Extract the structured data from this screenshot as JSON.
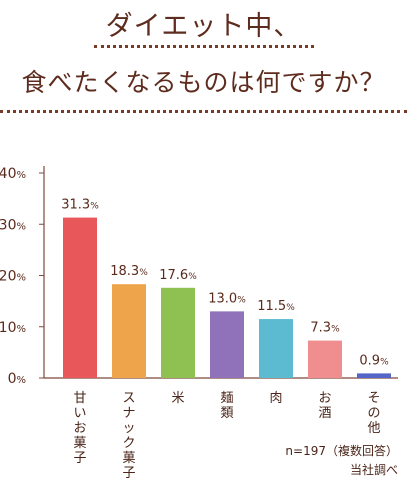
{
  "title_line1": "ダイエット中、",
  "title_line2": "食べたくなるものは何ですか？",
  "chart_data": {
    "type": "bar",
    "categories": [
      "甘いお菓子",
      "スナック菓子",
      "米",
      "麺類",
      "肉",
      "お酒",
      "その他"
    ],
    "values": [
      31.3,
      18.3,
      17.6,
      13.0,
      11.5,
      7.3,
      0.9
    ],
    "value_labels": [
      "31.3%",
      "18.3%",
      "17.6%",
      "13.0%",
      "11.5%",
      "7.3%",
      "0.9%"
    ],
    "colors": [
      "#e8585b",
      "#eda44a",
      "#8ec152",
      "#8f72b9",
      "#5cbad1",
      "#f08d8f",
      "#5566c9"
    ],
    "yticks": [
      0,
      10,
      20,
      30,
      40
    ],
    "ytick_labels": [
      "0%",
      "10%",
      "20%",
      "30%",
      "40%"
    ],
    "ylim": [
      0,
      40
    ],
    "grid": false,
    "note_line1": "n=197（複数回答）",
    "note_line2": "当社調べ"
  }
}
